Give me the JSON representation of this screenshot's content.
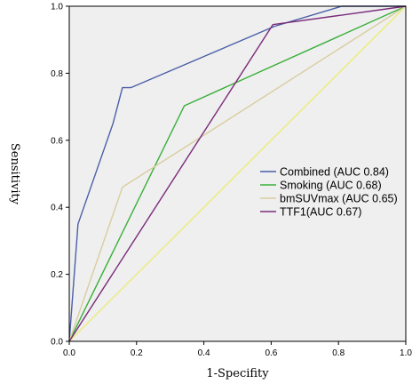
{
  "chart_data": {
    "type": "line",
    "xlabel": "1-Specifity",
    "ylabel": "Sensitivity",
    "xlim": [
      0,
      1
    ],
    "ylim": [
      0,
      1
    ],
    "x_ticks": [
      "0.0",
      "0.2",
      "0.4",
      "0.6",
      "0.8",
      "1.0"
    ],
    "y_ticks": [
      "0.0",
      "0.2",
      "0.4",
      "0.6",
      "0.8",
      "1.0"
    ],
    "legend_position": "right",
    "grid": false,
    "plot_background": "#efefef",
    "series": [
      {
        "name": "Combined (AUC 0.84)",
        "color": "#4a5fa8",
        "points": [
          [
            0,
            0
          ],
          [
            0.026,
            0.35
          ],
          [
            0.13,
            0.65
          ],
          [
            0.158,
            0.757
          ],
          [
            0.183,
            0.757
          ],
          [
            0.61,
            0.94
          ],
          [
            0.81,
            1.0
          ],
          [
            1.0,
            1.0
          ]
        ]
      },
      {
        "name": "Smoking (AUC 0.68)",
        "color": "#3aaf3a",
        "points": [
          [
            0,
            0
          ],
          [
            0.342,
            0.703
          ],
          [
            1.0,
            1.0
          ]
        ]
      },
      {
        "name": "bmSUVmax (AUC 0.65)",
        "color": "#d8cda0",
        "points": [
          [
            0,
            0
          ],
          [
            0.158,
            0.46
          ],
          [
            1.0,
            1.0
          ]
        ]
      },
      {
        "name": "TTF1(AUC 0.67)",
        "color": "#7a2a7a",
        "points": [
          [
            0,
            0
          ],
          [
            0.605,
            0.945
          ],
          [
            1.0,
            1.0
          ]
        ]
      }
    ],
    "reference_line": {
      "color": "#ecec70",
      "points": [
        [
          0,
          0
        ],
        [
          1,
          1
        ]
      ]
    }
  }
}
